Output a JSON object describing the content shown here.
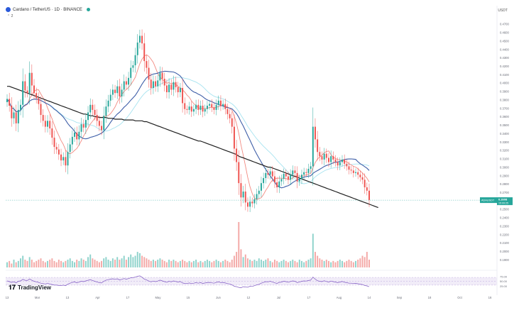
{
  "header": {
    "title": "Cardano / TetherUS · 1D · BINANCE",
    "collapse_label": "⌃ 2",
    "currency": "USDT"
  },
  "brand": {
    "name": "TradingView"
  },
  "colors": {
    "up": "#26a69a",
    "down": "#ef5350",
    "ma_long": "#1e1e1e",
    "ma_mid": "#3f5fa8",
    "ma_short": "#f28b82",
    "ma_cyan": "#a6e3f0",
    "rsi_line": "#7e57c2"
  },
  "chart_data": {
    "type": "candlestick",
    "symbol": "ADAUSDT",
    "last_price": "0.2608",
    "countdown": "15:09:25",
    "ylim": [
      0.18,
      0.48
    ],
    "y_ticks": [
      "0.4700",
      "0.4600",
      "0.4500",
      "0.4400",
      "0.4300",
      "0.4200",
      "0.4100",
      "0.4000",
      "0.3900",
      "0.3800",
      "0.3700",
      "0.3600",
      "0.3500",
      "0.3400",
      "0.3300",
      "0.3200",
      "0.3100",
      "0.3000",
      "0.2900",
      "0.2800",
      "0.2700",
      "0.2600",
      "0.2500",
      "0.2400",
      "0.2300",
      "0.2200",
      "0.2100",
      "0.2000",
      "0.1900"
    ],
    "x_labels": [
      "13",
      "Mar",
      "13",
      "Apr",
      "17",
      "May",
      "15",
      "Jun",
      "12",
      "Jul",
      "17",
      "Aug",
      "14",
      "Sep",
      "18",
      "Oct",
      "16"
    ],
    "rsi_ticks": [
      "75.00",
      "50.00",
      "25.00"
    ],
    "closes": [
      0.381,
      0.373,
      0.358,
      0.365,
      0.352,
      0.368,
      0.374,
      0.402,
      0.391,
      0.388,
      0.412,
      0.397,
      0.388,
      0.382,
      0.375,
      0.362,
      0.355,
      0.348,
      0.355,
      0.346,
      0.335,
      0.324,
      0.321,
      0.315,
      0.308,
      0.312,
      0.302,
      0.318,
      0.327,
      0.336,
      0.341,
      0.333,
      0.342,
      0.351,
      0.347,
      0.356,
      0.365,
      0.374,
      0.368,
      0.362,
      0.355,
      0.349,
      0.344,
      0.361,
      0.372,
      0.379,
      0.386,
      0.392,
      0.388,
      0.396,
      0.384,
      0.392,
      0.402,
      0.398,
      0.406,
      0.418,
      0.421,
      0.433,
      0.448,
      0.456,
      0.447,
      0.426,
      0.418,
      0.404,
      0.394,
      0.402,
      0.396,
      0.403,
      0.412,
      0.405,
      0.397,
      0.389,
      0.398,
      0.392,
      0.401,
      0.395,
      0.389,
      0.394,
      0.376,
      0.369,
      0.368,
      0.372,
      0.366,
      0.369,
      0.374,
      0.368,
      0.373,
      0.366,
      0.369,
      0.373,
      0.375,
      0.371,
      0.368,
      0.374,
      0.379,
      0.373,
      0.375,
      0.369,
      0.363,
      0.358,
      0.348,
      0.322,
      0.306,
      0.281,
      0.264,
      0.271,
      0.258,
      0.253,
      0.259,
      0.257,
      0.262,
      0.268,
      0.272,
      0.281,
      0.287,
      0.293,
      0.291,
      0.295,
      0.289,
      0.282,
      0.276,
      0.283,
      0.286,
      0.292,
      0.289,
      0.285,
      0.291,
      0.296,
      0.293,
      0.283,
      0.286,
      0.291,
      0.294,
      0.293,
      0.298,
      0.301,
      0.348,
      0.333,
      0.318,
      0.313,
      0.309,
      0.316,
      0.311,
      0.306,
      0.313,
      0.309,
      0.306,
      0.302,
      0.306,
      0.309,
      0.304,
      0.301,
      0.297,
      0.296,
      0.293,
      0.294,
      0.291,
      0.288,
      0.285,
      0.276,
      0.272,
      0.261
    ],
    "ma200": [
      0.396,
      0.396,
      0.395,
      0.394,
      0.393,
      0.392,
      0.391,
      0.39,
      0.389,
      0.388,
      0.387,
      0.386,
      0.385,
      0.384,
      0.383,
      0.382,
      0.381,
      0.38,
      0.379,
      0.378,
      0.377,
      0.376,
      0.375,
      0.374,
      0.373,
      0.372,
      0.371,
      0.37,
      0.369,
      0.368,
      0.367,
      0.366,
      0.365,
      0.364,
      0.363,
      0.363,
      0.362,
      0.361,
      0.361,
      0.36,
      0.36,
      0.359,
      0.359,
      0.359,
      0.359,
      0.358,
      0.358,
      0.358,
      0.357,
      0.357,
      0.357,
      0.357,
      0.356,
      0.356,
      0.356,
      0.356,
      0.356,
      0.355,
      0.355,
      0.355,
      0.355,
      0.354,
      0.354,
      0.353,
      0.352,
      0.351,
      0.35,
      0.349,
      0.348,
      0.347,
      0.346,
      0.345,
      0.344,
      0.343,
      0.342,
      0.341,
      0.34,
      0.339,
      0.338,
      0.337,
      0.336,
      0.335,
      0.334,
      0.333,
      0.332,
      0.331,
      0.331,
      0.33,
      0.329,
      0.328,
      0.327,
      0.326,
      0.325,
      0.324,
      0.323,
      0.322,
      0.321,
      0.32,
      0.319,
      0.318,
      0.317,
      0.316,
      0.315,
      0.313,
      0.312,
      0.311,
      0.31,
      0.309,
      0.308,
      0.307,
      0.306,
      0.305,
      0.304,
      0.303,
      0.302,
      0.301,
      0.3,
      0.3,
      0.299,
      0.298,
      0.297,
      0.296,
      0.295,
      0.294,
      0.293,
      0.292,
      0.291,
      0.29,
      0.289,
      0.288,
      0.287,
      0.286,
      0.285,
      0.284,
      0.283,
      0.282,
      0.281,
      0.28,
      0.279,
      0.278,
      0.277,
      0.276,
      0.275,
      0.274,
      0.273,
      0.272,
      0.271,
      0.27,
      0.269,
      0.268,
      0.267,
      0.266,
      0.265,
      0.264,
      0.263,
      0.262,
      0.261,
      0.26,
      0.259,
      0.258,
      0.257,
      0.256,
      0.255,
      0.254,
      0.253,
      0.252
    ],
    "volumes": [
      4,
      5,
      3,
      6,
      4,
      5,
      7,
      9,
      6,
      5,
      8,
      6,
      4,
      5,
      6,
      7,
      5,
      4,
      5,
      6,
      7,
      5,
      4,
      6,
      5,
      4,
      5,
      6,
      7,
      5,
      4,
      6,
      5,
      7,
      6,
      5,
      8,
      10,
      7,
      6,
      5,
      4,
      5,
      7,
      8,
      6,
      5,
      7,
      6,
      8,
      6,
      7,
      9,
      6,
      8,
      10,
      8,
      9,
      12,
      11,
      9,
      8,
      7,
      6,
      5,
      6,
      5,
      6,
      7,
      6,
      5,
      4,
      6,
      5,
      6,
      5,
      4,
      5,
      6,
      5,
      4,
      5,
      4,
      5,
      6,
      4,
      5,
      4,
      5,
      6,
      5,
      4,
      5,
      6,
      5,
      4,
      5,
      6,
      5,
      4,
      6,
      9,
      12,
      35,
      14,
      8,
      10,
      7,
      6,
      5,
      6,
      5,
      7,
      6,
      5,
      6,
      7,
      5,
      4,
      6,
      5,
      4,
      5,
      6,
      5,
      4,
      5,
      6,
      5,
      4,
      6,
      5,
      4,
      5,
      6,
      7,
      26,
      12,
      9,
      7,
      6,
      5,
      6,
      5,
      4,
      5,
      4,
      5,
      6,
      5,
      4,
      5,
      6,
      5,
      4,
      5,
      6,
      7,
      9,
      8,
      12,
      6
    ],
    "rsi": [
      52,
      48,
      44,
      47,
      42,
      50,
      52,
      60,
      55,
      54,
      62,
      55,
      50,
      47,
      44,
      40,
      38,
      36,
      40,
      36,
      33,
      30,
      30,
      28,
      27,
      30,
      27,
      35,
      40,
      44,
      47,
      42,
      46,
      50,
      48,
      52,
      55,
      58,
      54,
      50,
      46,
      43,
      41,
      50,
      56,
      58,
      61,
      63,
      60,
      63,
      57,
      60,
      64,
      61,
      64,
      68,
      69,
      72,
      76,
      78,
      71,
      61,
      57,
      51,
      47,
      51,
      48,
      51,
      56,
      52,
      48,
      45,
      50,
      47,
      52,
      49,
      46,
      49,
      41,
      39,
      38,
      41,
      38,
      40,
      43,
      40,
      43,
      39,
      41,
      43,
      44,
      42,
      40,
      44,
      47,
      43,
      44,
      41,
      38,
      36,
      31,
      24,
      22,
      18,
      16,
      22,
      20,
      19,
      24,
      23,
      27,
      31,
      34,
      40,
      44,
      48,
      47,
      50,
      46,
      42,
      39,
      44,
      46,
      50,
      48,
      45,
      49,
      52,
      50,
      43,
      46,
      50,
      52,
      51,
      54,
      56,
      72,
      61,
      53,
      50,
      48,
      53,
      49,
      46,
      51,
      48,
      46,
      43,
      46,
      49,
      45,
      43,
      40,
      40,
      38,
      39,
      37,
      35,
      33,
      28,
      26,
      22
    ]
  }
}
